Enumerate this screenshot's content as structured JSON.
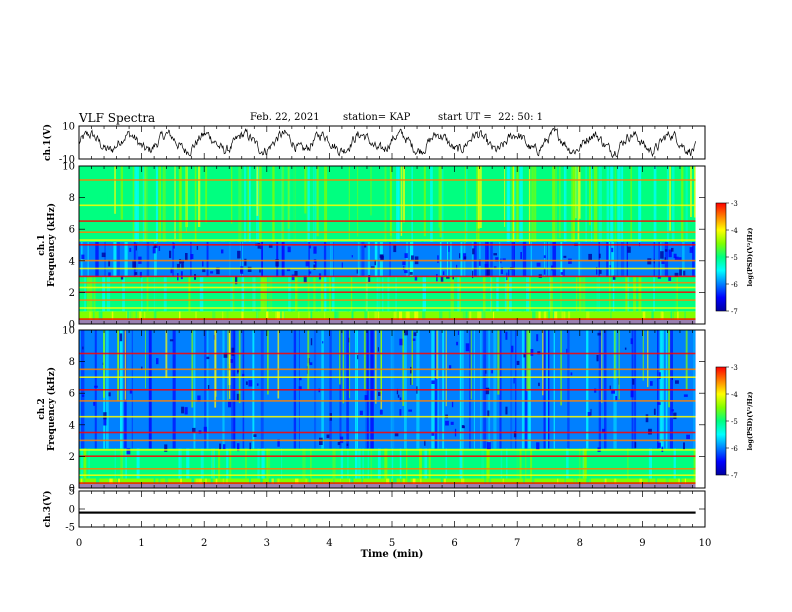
{
  "header": {
    "title": "VLF Spectra",
    "date": "Feb. 22, 2021",
    "station": "station= KAP",
    "start": "start UT =  22: 50: 1"
  },
  "chart_data": [
    {
      "type": "line",
      "panel": "ch1-waveform",
      "ylabel": "ch.1(V)",
      "ylim": [
        -10,
        10
      ],
      "yticks": [
        "10",
        "-10"
      ],
      "xlim": [
        0,
        10
      ],
      "x_end": 9.85,
      "waveform": "noisy oscillation roughly between -8 and 6 V"
    },
    {
      "type": "heatmap",
      "panel": "ch1-spectrogram",
      "ylabel": "ch.1\nFrequency (kHz)",
      "ylim": [
        0,
        10
      ],
      "yticks": [
        "0",
        "2",
        "4",
        "6",
        "8",
        "10"
      ],
      "xlim": [
        0,
        10
      ],
      "x_end": 9.85,
      "colorbar": {
        "label": "log(PSD)(V²/Hz)",
        "range": [
          -7,
          -3
        ],
        "ticks": [
          "-3",
          "-4",
          "-5",
          "-6",
          "-7"
        ]
      },
      "horizontal_lines_kHz": [
        0.3,
        1.0,
        1.5,
        2.0,
        2.3,
        2.6,
        3.0,
        3.5,
        4.0,
        5.0,
        5.3,
        5.8,
        6.5,
        7.5,
        9.1
      ],
      "bands": [
        {
          "from": 0.0,
          "to": 0.8,
          "level": "high"
        },
        {
          "from": 0.8,
          "to": 3.0,
          "level": "medium"
        },
        {
          "from": 3.0,
          "to": 5.2,
          "level": "low"
        },
        {
          "from": 5.2,
          "to": 10.0,
          "level": "medium"
        }
      ]
    },
    {
      "type": "heatmap",
      "panel": "ch2-spectrogram",
      "ylabel": "ch.2\nFrequency (kHz)",
      "ylim": [
        0,
        10
      ],
      "yticks": [
        "0",
        "2",
        "4",
        "6",
        "8",
        "10"
      ],
      "xlim": [
        0,
        10
      ],
      "x_end": 9.85,
      "colorbar": {
        "label": "log(PSD)(V²/Hz)",
        "range": [
          -7,
          -3
        ],
        "ticks": [
          "-3",
          "-4",
          "-5",
          "-6",
          "-7"
        ]
      },
      "horizontal_lines_kHz": [
        0.3,
        0.8,
        1.2,
        2.0,
        2.4,
        3.0,
        3.5,
        4.5,
        5.5,
        6.2,
        7.0,
        7.5,
        8.5
      ],
      "bands": [
        {
          "from": 0.0,
          "to": 0.6,
          "level": "high"
        },
        {
          "from": 0.6,
          "to": 2.5,
          "level": "medium"
        },
        {
          "from": 2.5,
          "to": 10.0,
          "level": "low"
        }
      ]
    },
    {
      "type": "line",
      "panel": "ch3-waveform",
      "ylabel": "ch.3(V)",
      "ylim": [
        -5,
        5
      ],
      "yticks": [
        "5",
        "0",
        "-5"
      ],
      "xlim": [
        0,
        10
      ],
      "x_end": 9.85,
      "waveform": "dense signal near -1 V, amplitude about 0.6 V"
    }
  ],
  "x_axis": {
    "label": "Time (min)",
    "ticks": [
      "0",
      "1",
      "2",
      "3",
      "4",
      "5",
      "6",
      "7",
      "8",
      "9",
      "10"
    ]
  },
  "colors": {
    "colormap": [
      "#0000a0",
      "#0000ff",
      "#0080ff",
      "#00ffff",
      "#00ff80",
      "#80ff00",
      "#ffff00",
      "#ff8000",
      "#ff0000",
      "#ffffff"
    ]
  }
}
